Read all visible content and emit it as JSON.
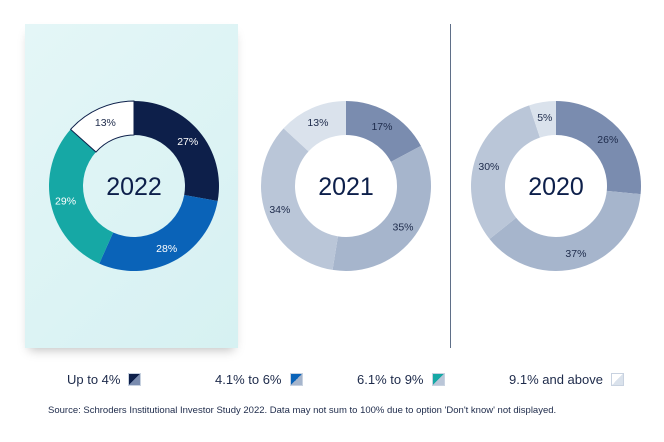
{
  "chart_data": {
    "type": "pie",
    "variant": "donut",
    "categories": [
      "Up to 4%",
      "4.1% to 6%",
      "6.1% to 9%",
      "9.1% and above"
    ],
    "charts": [
      {
        "label": "2022",
        "values": [
          27,
          28,
          29,
          13
        ],
        "value_labels": [
          "27%",
          "28%",
          "29%",
          "13%"
        ],
        "highlighted": true,
        "colors": [
          "#0d1f4a",
          "#0a63b8",
          "#16a8a5",
          "#ffffff"
        ],
        "label_colors": [
          "#ffffff",
          "#ffffff",
          "#ffffff",
          "#1d2a4a"
        ]
      },
      {
        "label": "2021",
        "values": [
          17,
          35,
          34,
          13
        ],
        "value_labels": [
          "17%",
          "35%",
          "34%",
          "13%"
        ],
        "highlighted": false,
        "colors": [
          "#7a8caf",
          "#a6b5cc",
          "#bac6d8",
          "#dae2ec"
        ],
        "label_colors": [
          "#1d2a4a",
          "#1d2a4a",
          "#1d2a4a",
          "#1d2a4a"
        ]
      },
      {
        "label": "2020",
        "values": [
          26,
          37,
          30,
          5
        ],
        "value_labels": [
          "26%",
          "37%",
          "30%",
          "5%"
        ],
        "highlighted": false,
        "colors": [
          "#7a8caf",
          "#a6b5cc",
          "#bac6d8",
          "#dae2ec"
        ],
        "label_colors": [
          "#1d2a4a",
          "#1d2a4a",
          "#1d2a4a",
          "#1d2a4a"
        ]
      }
    ],
    "legend_position": "bottom"
  },
  "legend": {
    "items": [
      {
        "label": "Up to 4%",
        "swatch_a": "#0d1f4a",
        "swatch_b": "#7a8caf"
      },
      {
        "label": "4.1% to 6%",
        "swatch_a": "#0a63b8",
        "swatch_b": "#a6b5cc"
      },
      {
        "label": "6.1% to 9%",
        "swatch_a": "#16a8a5",
        "swatch_b": "#bac6d8"
      },
      {
        "label": "9.1% and above",
        "swatch_a": "#ffffff",
        "swatch_b": "#dae2ec"
      }
    ]
  },
  "source_note": "Source: Schroders Institutional Investor Study 2022. Data may not sum to 100% due to option 'Don't know' not displayed.",
  "colors": {
    "text": "#1d2a4a",
    "panel": "#dff4f5",
    "divider": "#5f6f88"
  }
}
